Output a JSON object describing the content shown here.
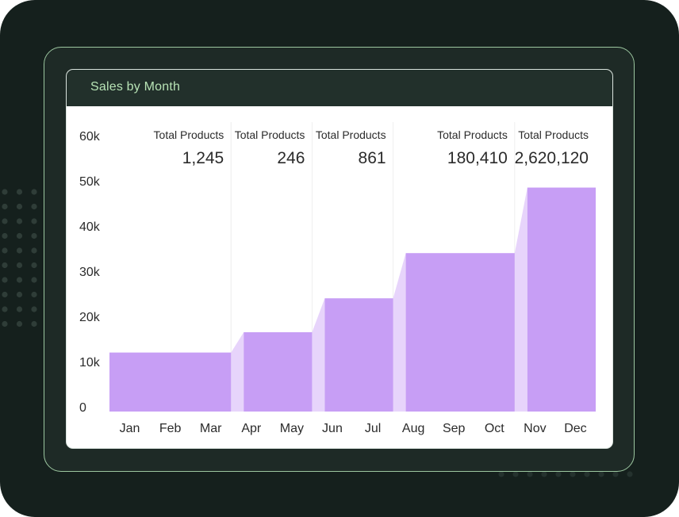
{
  "card": {
    "title": "Sales by Month"
  },
  "colors": {
    "background": "#15201d",
    "frame_border": "#9cc7a0",
    "header": "#22302b",
    "title": "#b7e3b5",
    "bar": "#c79ef5",
    "bar_transition": "#e7d4fb",
    "divider": "#eeeeee"
  },
  "chart_data": {
    "type": "area",
    "title": "",
    "xlabel": "",
    "ylabel": "",
    "ylim": [
      0,
      60000
    ],
    "y_ticks": [
      {
        "value": 0,
        "label": "0"
      },
      {
        "value": 10000,
        "label": "10k"
      },
      {
        "value": 20000,
        "label": "20k"
      },
      {
        "value": 30000,
        "label": "30k"
      },
      {
        "value": 40000,
        "label": "40k"
      },
      {
        "value": 50000,
        "label": "50k"
      },
      {
        "value": 60000,
        "label": "60k"
      }
    ],
    "categories": [
      "Jan",
      "Feb",
      "Mar",
      "Apr",
      "May",
      "Jun",
      "Jul",
      "Aug",
      "Sep",
      "Oct",
      "Nov",
      "Dec"
    ],
    "grid": false,
    "segments": [
      {
        "months": [
          "Jan",
          "Feb",
          "Mar"
        ],
        "value": 12000,
        "kpi_label": "Total Products",
        "kpi_value": "1,245"
      },
      {
        "months": [
          "Apr",
          "May"
        ],
        "value": 16500,
        "kpi_label": "Total Products",
        "kpi_value": "246"
      },
      {
        "months": [
          "Jun",
          "Jul"
        ],
        "value": 24000,
        "kpi_label": "Total Products",
        "kpi_value": "861"
      },
      {
        "months": [
          "Aug",
          "Sep",
          "Oct"
        ],
        "value": 34000,
        "kpi_label": "Total Products",
        "kpi_value": "180,410"
      },
      {
        "months": [
          "Nov",
          "Dec"
        ],
        "value": 48500,
        "kpi_label": "Total Products",
        "kpi_value": "2,620,120"
      }
    ]
  }
}
